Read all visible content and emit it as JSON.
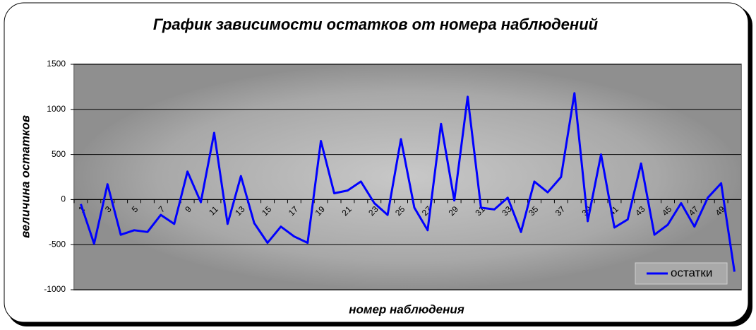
{
  "chart_data": {
    "type": "line",
    "title": "График зависимости остатков от номера наблюдений",
    "x_label": "номер наблюдения",
    "y_label": "величина остатков",
    "categories": [
      "1",
      null,
      "3",
      null,
      "5",
      null,
      "7",
      null,
      "9",
      null,
      "11",
      null,
      "13",
      null,
      "15",
      null,
      "17",
      null,
      "19",
      null,
      "21",
      null,
      "23",
      null,
      "25",
      null,
      "27",
      null,
      "29",
      null,
      "31",
      null,
      "33",
      null,
      "35",
      null,
      "37",
      null,
      "39",
      null,
      "41",
      null,
      "43",
      null,
      "45",
      null,
      "47",
      null,
      "49",
      null
    ],
    "series": [
      {
        "name": "остатки",
        "color": "#0000ff",
        "values": [
          -50,
          -490,
          170,
          -390,
          -340,
          -360,
          -170,
          -270,
          310,
          -30,
          740,
          -270,
          260,
          -260,
          -480,
          -300,
          -410,
          -480,
          650,
          70,
          100,
          200,
          -40,
          -170,
          670,
          -90,
          -340,
          840,
          -10,
          1140,
          -90,
          -110,
          20,
          -360,
          200,
          80,
          250,
          1180,
          -240,
          500,
          -310,
          -220,
          400,
          -390,
          -280,
          -40,
          -300,
          20,
          180,
          -800
        ]
      }
    ],
    "ylim": [
      -1000,
      1500
    ],
    "yticks": [
      -1000,
      -500,
      0,
      500,
      1000,
      1500
    ],
    "grid": true,
    "legend": "bottom-right"
  }
}
